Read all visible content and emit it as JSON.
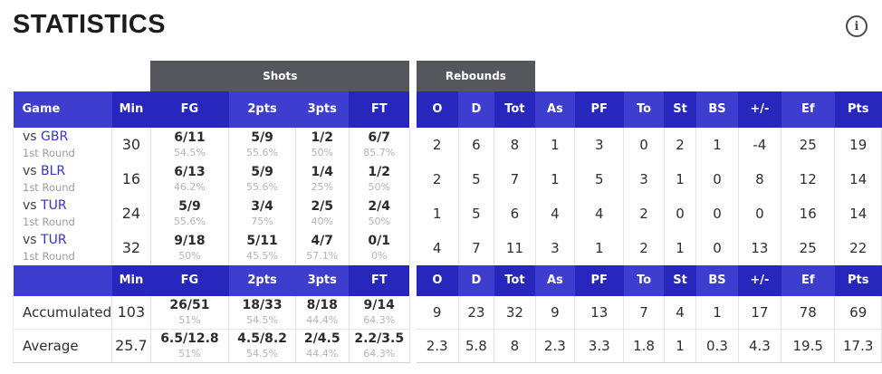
{
  "title": "STATISTICS",
  "icons": {
    "info": "i"
  },
  "colors": {
    "header_dark": "#2727bd",
    "header_light": "#3d3dcf",
    "group_bg": "#56575c",
    "link": "#3434ce"
  },
  "table": {
    "group_headers": {
      "shots": "Shots",
      "rebounds": "Rebounds"
    },
    "columns_left": [
      "Game",
      "Min",
      "FG",
      "2pts",
      "3pts",
      "FT"
    ],
    "columns_right": [
      "O",
      "D",
      "Tot",
      "As",
      "PF",
      "To",
      "St",
      "BS",
      "+/-",
      "Ef",
      "Pts"
    ],
    "rows": [
      {
        "game": {
          "prefix": "vs",
          "team": "GBR",
          "sub": "1st Round"
        },
        "min": "30",
        "shots": [
          {
            "v": "6/11",
            "p": "54.5%"
          },
          {
            "v": "5/9",
            "p": "55.6%"
          },
          {
            "v": "1/2",
            "p": "50%"
          },
          {
            "v": "6/7",
            "p": "85.7%"
          }
        ],
        "stats": [
          "2",
          "6",
          "8",
          "1",
          "3",
          "0",
          "2",
          "1",
          "-4",
          "25",
          "19"
        ]
      },
      {
        "game": {
          "prefix": "vs",
          "team": "BLR",
          "sub": "1st Round"
        },
        "min": "16",
        "shots": [
          {
            "v": "6/13",
            "p": "46.2%"
          },
          {
            "v": "5/9",
            "p": "55.6%"
          },
          {
            "v": "1/4",
            "p": "25%"
          },
          {
            "v": "1/2",
            "p": "50%"
          }
        ],
        "stats": [
          "2",
          "5",
          "7",
          "1",
          "5",
          "3",
          "1",
          "0",
          "8",
          "12",
          "14"
        ]
      },
      {
        "game": {
          "prefix": "vs",
          "team": "TUR",
          "sub": "1st Round"
        },
        "min": "24",
        "shots": [
          {
            "v": "5/9",
            "p": "55.6%"
          },
          {
            "v": "3/4",
            "p": "75%"
          },
          {
            "v": "2/5",
            "p": "40%"
          },
          {
            "v": "2/4",
            "p": "50%"
          }
        ],
        "stats": [
          "1",
          "5",
          "6",
          "4",
          "4",
          "2",
          "0",
          "0",
          "0",
          "16",
          "14"
        ]
      },
      {
        "game": {
          "prefix": "vs",
          "team": "TUR",
          "sub": "1st Round"
        },
        "min": "32",
        "shots": [
          {
            "v": "9/18",
            "p": "50%"
          },
          {
            "v": "5/11",
            "p": "45.5%"
          },
          {
            "v": "4/7",
            "p": "57.1%"
          },
          {
            "v": "0/1",
            "p": "0%"
          }
        ],
        "stats": [
          "4",
          "7",
          "11",
          "3",
          "1",
          "2",
          "1",
          "0",
          "13",
          "25",
          "22"
        ]
      }
    ],
    "summary": [
      {
        "label": "Accumulated",
        "min": "103",
        "shots": [
          {
            "v": "26/51",
            "p": "51%"
          },
          {
            "v": "18/33",
            "p": "54.5%"
          },
          {
            "v": "8/18",
            "p": "44.4%"
          },
          {
            "v": "9/14",
            "p": "64.3%"
          }
        ],
        "stats": [
          "9",
          "23",
          "32",
          "9",
          "13",
          "7",
          "4",
          "1",
          "17",
          "78",
          "69"
        ]
      },
      {
        "label": "Average",
        "min": "25.7",
        "shots": [
          {
            "v": "6.5/12.8",
            "p": "51%"
          },
          {
            "v": "4.5/8.2",
            "p": "54.5%"
          },
          {
            "v": "2/4.5",
            "p": "44.4%"
          },
          {
            "v": "2.2/3.5",
            "p": "64.3%"
          }
        ],
        "stats": [
          "2.3",
          "5.8",
          "8",
          "2.3",
          "3.3",
          "1.8",
          "1",
          "0.3",
          "4.3",
          "19.5",
          "17.3"
        ]
      }
    ]
  }
}
